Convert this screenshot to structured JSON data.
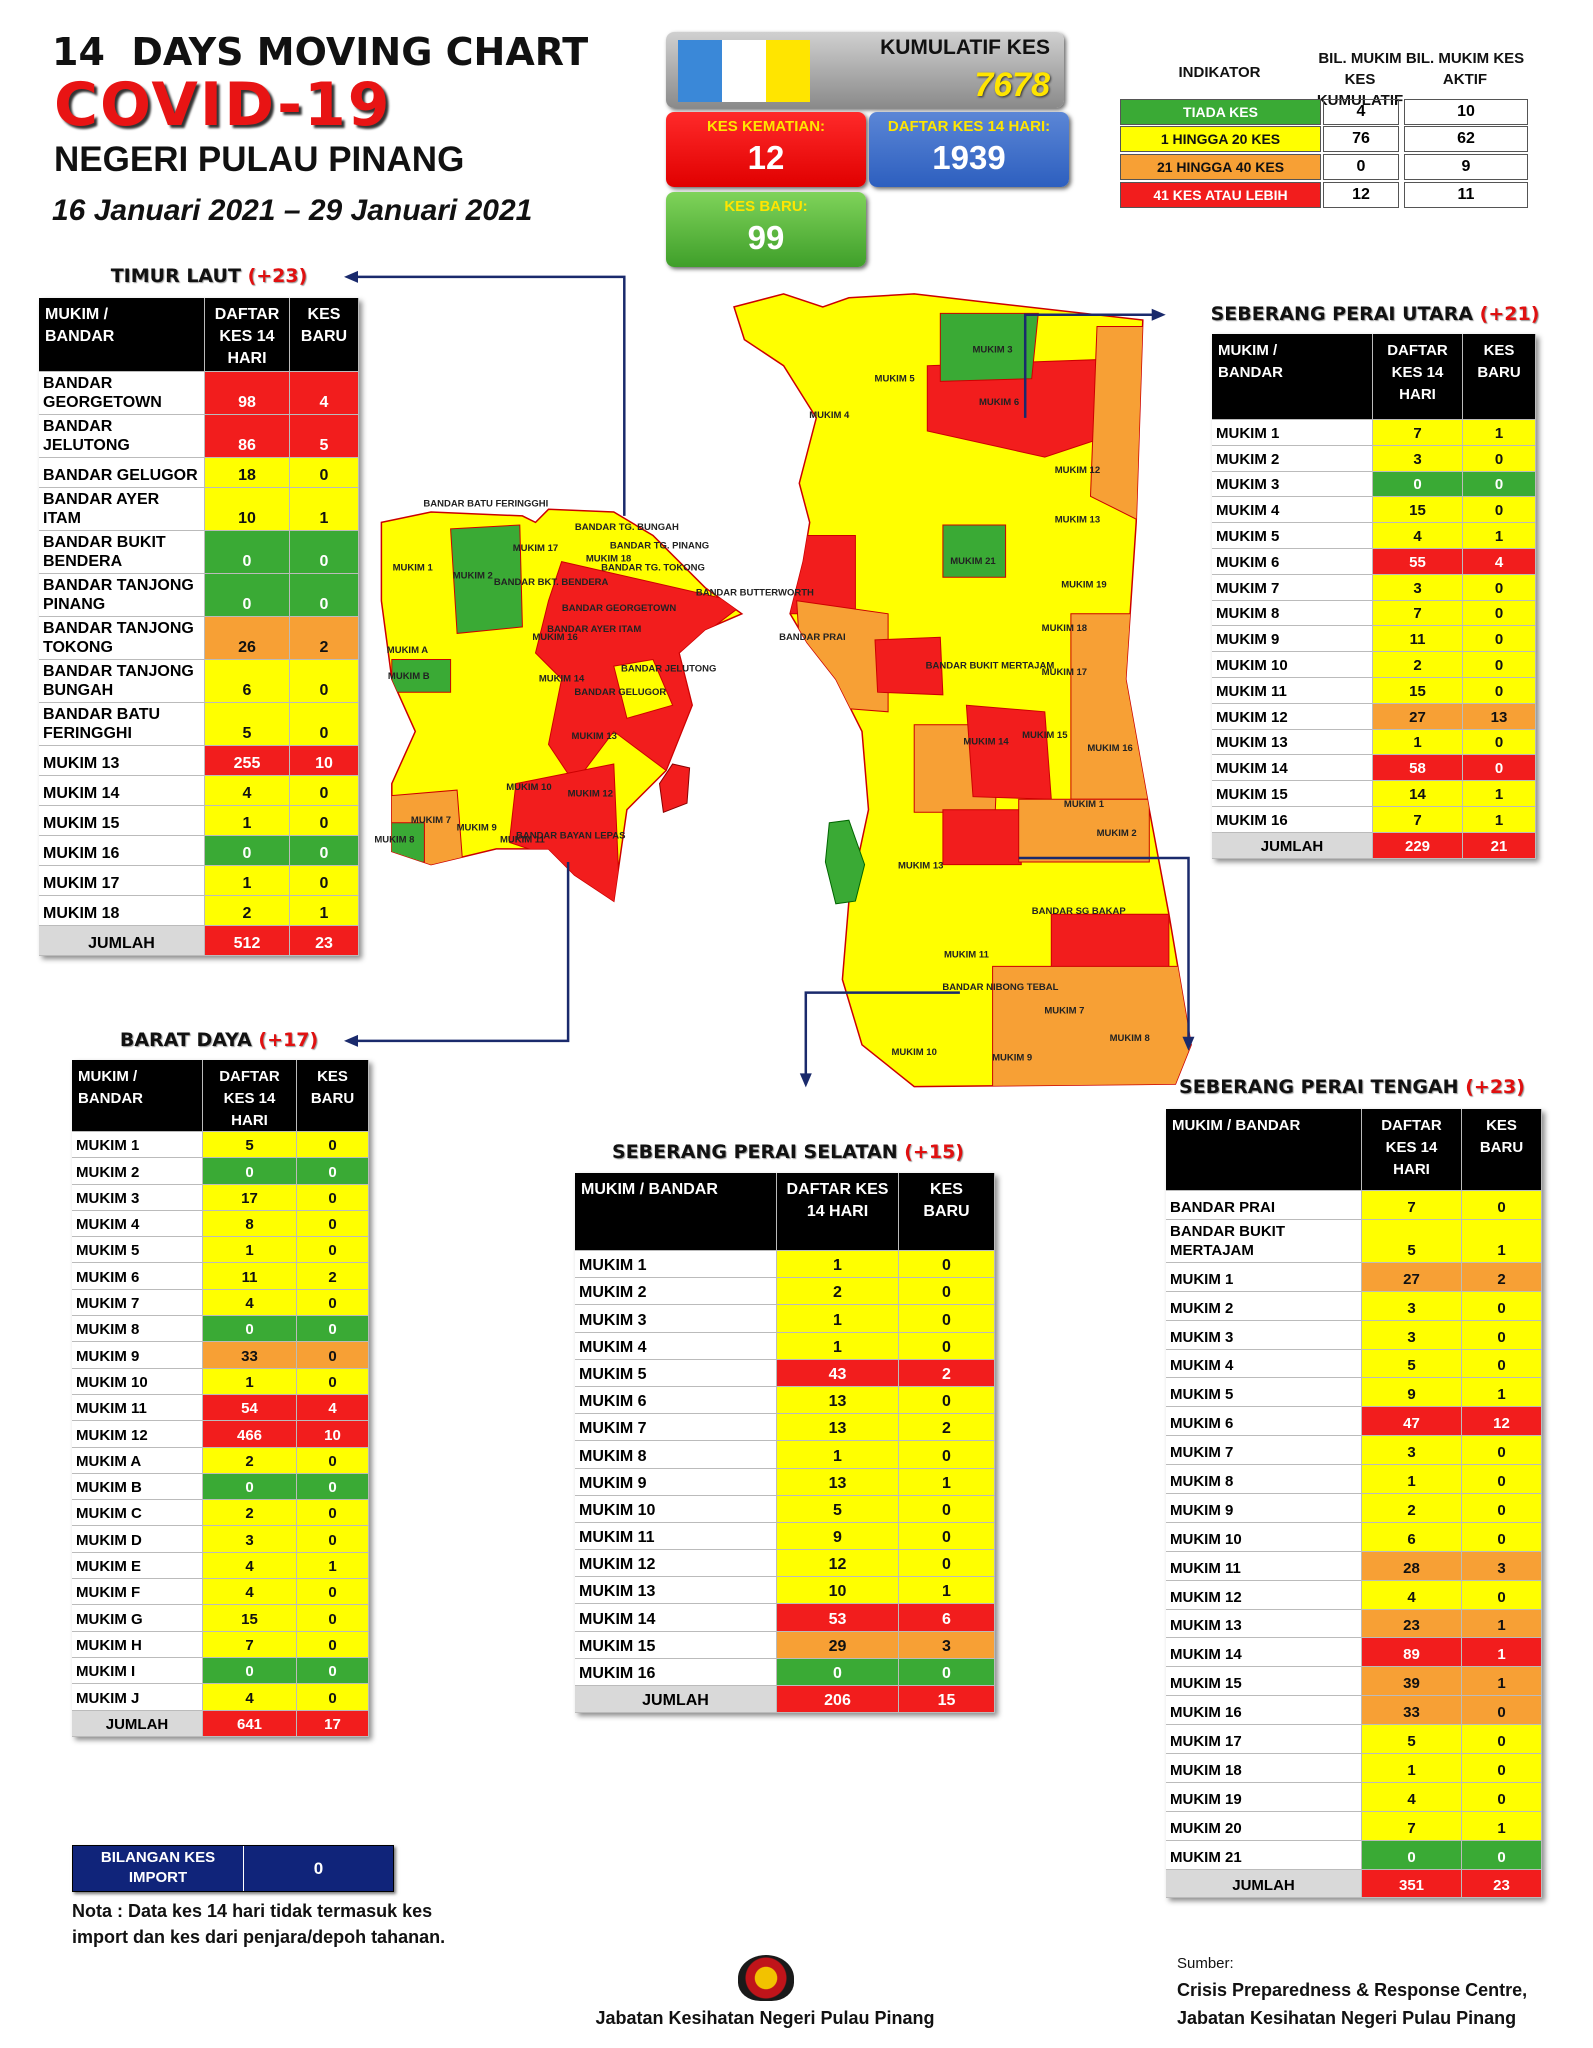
{
  "header": {
    "line1": "14  DAYS MOVING CHART",
    "title": "COVID-19",
    "state": "NEGERI PULAU PINANG",
    "period": "16 Januari 2021 – 29 Januari 2021"
  },
  "summary": {
    "cumulative": {
      "label": "KUMULATIF KES",
      "value": 7678
    },
    "deaths": {
      "label": "KES KEMATIAN:",
      "value": 12
    },
    "active14": {
      "label": "DAFTAR KES 14 HARI:",
      "value": 1939
    },
    "new": {
      "label": "KES BARU:",
      "value": 99
    }
  },
  "indicator": {
    "headers": [
      "INDIKATOR",
      "BIL. MUKIM KES KUMULATIF",
      "BIL. MUKIM KES AKTIF"
    ],
    "rows": [
      {
        "label": "TIADA KES",
        "color": "#3aaa35",
        "cumulative": 4,
        "active": 10
      },
      {
        "label": "1 HINGGA 20 KES",
        "color": "#ffff00",
        "cumulative": 76,
        "active": 62
      },
      {
        "label": "21 HINGGA 40 KES",
        "color": "#f7a035",
        "cumulative": 0,
        "active": 9
      },
      {
        "label": "41 KES ATAU LEBIH",
        "color": "#f21d1d",
        "cumulative": 12,
        "active": 11
      }
    ]
  },
  "tables": [
    {
      "title": "TIMUR LAUT",
      "change": "(+23)",
      "headers": [
        "MUKIM / BANDAR",
        "DAFTAR KES 14 HARI",
        "KES BARU"
      ],
      "rows": [
        {
          "name": "BANDAR GEORGETOWN",
          "daftar": 98,
          "baru": 4,
          "color": "#f21d1d"
        },
        {
          "name": "BANDAR JELUTONG",
          "daftar": 86,
          "baru": 5,
          "color": "#f21d1d"
        },
        {
          "name": "BANDAR GELUGOR",
          "daftar": 18,
          "baru": 0,
          "color": "#ffff00"
        },
        {
          "name": "BANDAR AYER ITAM",
          "daftar": 10,
          "baru": 1,
          "color": "#ffff00"
        },
        {
          "name": "BANDAR BUKIT BENDERA",
          "daftar": 0,
          "baru": 0,
          "color": "#3aaa35"
        },
        {
          "name": "BANDAR TANJONG PINANG",
          "daftar": 0,
          "baru": 0,
          "color": "#3aaa35"
        },
        {
          "name": "BANDAR TANJONG TOKONG",
          "daftar": 26,
          "baru": 2,
          "color": "#f7a035"
        },
        {
          "name": "BANDAR TANJONG BUNGAH",
          "daftar": 6,
          "baru": 0,
          "color": "#ffff00"
        },
        {
          "name": "BANDAR BATU FERINGGHI",
          "daftar": 5,
          "baru": 0,
          "color": "#ffff00"
        },
        {
          "name": "MUKIM 13",
          "daftar": 255,
          "baru": 10,
          "color": "#f21d1d"
        },
        {
          "name": "MUKIM 14",
          "daftar": 4,
          "baru": 0,
          "color": "#ffff00"
        },
        {
          "name": "MUKIM 15",
          "daftar": 1,
          "baru": 0,
          "color": "#ffff00"
        },
        {
          "name": "MUKIM 16",
          "daftar": 0,
          "baru": 0,
          "color": "#3aaa35"
        },
        {
          "name": "MUKIM 17",
          "daftar": 1,
          "baru": 0,
          "color": "#ffff00"
        },
        {
          "name": "MUKIM 18",
          "daftar": 2,
          "baru": 1,
          "color": "#ffff00"
        }
      ],
      "total": {
        "name": "JUMLAH",
        "daftar": 512,
        "baru": 23,
        "color": "#f21d1d"
      }
    },
    {
      "title": "BARAT DAYA",
      "change": "(+17)",
      "headers": [
        "MUKIM / BANDAR",
        "DAFTAR KES 14 HARI",
        "KES BARU"
      ],
      "rows": [
        {
          "name": "MUKIM 1",
          "daftar": 5,
          "baru": 0,
          "color": "#ffff00"
        },
        {
          "name": "MUKIM 2",
          "daftar": 0,
          "baru": 0,
          "color": "#3aaa35"
        },
        {
          "name": "MUKIM 3",
          "daftar": 17,
          "baru": 0,
          "color": "#ffff00"
        },
        {
          "name": "MUKIM 4",
          "daftar": 8,
          "baru": 0,
          "color": "#ffff00"
        },
        {
          "name": "MUKIM 5",
          "daftar": 1,
          "baru": 0,
          "color": "#ffff00"
        },
        {
          "name": "MUKIM 6",
          "daftar": 11,
          "baru": 2,
          "color": "#ffff00"
        },
        {
          "name": "MUKIM 7",
          "daftar": 4,
          "baru": 0,
          "color": "#ffff00"
        },
        {
          "name": "MUKIM 8",
          "daftar": 0,
          "baru": 0,
          "color": "#3aaa35"
        },
        {
          "name": "MUKIM 9",
          "daftar": 33,
          "baru": 0,
          "color": "#f7a035"
        },
        {
          "name": "MUKIM 10",
          "daftar": 1,
          "baru": 0,
          "color": "#ffff00"
        },
        {
          "name": "MUKIM 11",
          "daftar": 54,
          "baru": 4,
          "color": "#f21d1d"
        },
        {
          "name": "MUKIM 12",
          "daftar": 466,
          "baru": 10,
          "color": "#f21d1d"
        },
        {
          "name": "MUKIM A",
          "daftar": 2,
          "baru": 0,
          "color": "#ffff00"
        },
        {
          "name": "MUKIM B",
          "daftar": 0,
          "baru": 0,
          "color": "#3aaa35"
        },
        {
          "name": "MUKIM C",
          "daftar": 2,
          "baru": 0,
          "color": "#ffff00"
        },
        {
          "name": "MUKIM D",
          "daftar": 3,
          "baru": 0,
          "color": "#ffff00"
        },
        {
          "name": "MUKIM E",
          "daftar": 4,
          "baru": 1,
          "color": "#ffff00"
        },
        {
          "name": "MUKIM F",
          "daftar": 4,
          "baru": 0,
          "color": "#ffff00"
        },
        {
          "name": "MUKIM G",
          "daftar": 15,
          "baru": 0,
          "color": "#ffff00"
        },
        {
          "name": "MUKIM H",
          "daftar": 7,
          "baru": 0,
          "color": "#ffff00"
        },
        {
          "name": "MUKIM I",
          "daftar": 0,
          "baru": 0,
          "color": "#3aaa35"
        },
        {
          "name": "MUKIM J",
          "daftar": 4,
          "baru": 0,
          "color": "#ffff00"
        }
      ],
      "total": {
        "name": "JUMLAH",
        "daftar": 641,
        "baru": 17,
        "color": "#f21d1d"
      }
    },
    {
      "title": "SEBERANG PERAI SELATAN",
      "change": "(+15)",
      "headers": [
        "MUKIM / BANDAR",
        "DAFTAR KES 14 HARI",
        "KES BARU"
      ],
      "rows": [
        {
          "name": "MUKIM 1",
          "daftar": 1,
          "baru": 0,
          "color": "#ffff00"
        },
        {
          "name": "MUKIM 2",
          "daftar": 2,
          "baru": 0,
          "color": "#ffff00"
        },
        {
          "name": "MUKIM 3",
          "daftar": 1,
          "baru": 0,
          "color": "#ffff00"
        },
        {
          "name": "MUKIM 4",
          "daftar": 1,
          "baru": 0,
          "color": "#ffff00"
        },
        {
          "name": "MUKIM 5",
          "daftar": 43,
          "baru": 2,
          "color": "#f21d1d"
        },
        {
          "name": "MUKIM 6",
          "daftar": 13,
          "baru": 0,
          "color": "#ffff00"
        },
        {
          "name": "MUKIM 7",
          "daftar": 13,
          "baru": 2,
          "color": "#ffff00"
        },
        {
          "name": "MUKIM 8",
          "daftar": 1,
          "baru": 0,
          "color": "#ffff00"
        },
        {
          "name": "MUKIM 9",
          "daftar": 13,
          "baru": 1,
          "color": "#ffff00"
        },
        {
          "name": "MUKIM 10",
          "daftar": 5,
          "baru": 0,
          "color": "#ffff00"
        },
        {
          "name": "MUKIM 11",
          "daftar": 9,
          "baru": 0,
          "color": "#ffff00"
        },
        {
          "name": "MUKIM 12",
          "daftar": 12,
          "baru": 0,
          "color": "#ffff00"
        },
        {
          "name": "MUKIM 13",
          "daftar": 10,
          "baru": 1,
          "color": "#ffff00"
        },
        {
          "name": "MUKIM 14",
          "daftar": 53,
          "baru": 6,
          "color": "#f21d1d"
        },
        {
          "name": "MUKIM 15",
          "daftar": 29,
          "baru": 3,
          "color": "#f7a035"
        },
        {
          "name": "MUKIM 16",
          "daftar": 0,
          "baru": 0,
          "color": "#3aaa35"
        }
      ],
      "total": {
        "name": "JUMLAH",
        "daftar": 206,
        "baru": 15,
        "color": "#f21d1d"
      }
    },
    {
      "title": "SEBERANG PERAI UTARA",
      "change": "(+21)",
      "headers": [
        "MUKIM / BANDAR",
        "DAFTAR KES 14 HARI",
        "KES BARU"
      ],
      "rows": [
        {
          "name": "MUKIM 1",
          "daftar": 7,
          "baru": 1,
          "color": "#ffff00"
        },
        {
          "name": "MUKIM 2",
          "daftar": 3,
          "baru": 0,
          "color": "#ffff00"
        },
        {
          "name": "MUKIM 3",
          "daftar": 0,
          "baru": 0,
          "color": "#3aaa35"
        },
        {
          "name": "MUKIM 4",
          "daftar": 15,
          "baru": 0,
          "color": "#ffff00"
        },
        {
          "name": "MUKIM 5",
          "daftar": 4,
          "baru": 1,
          "color": "#ffff00"
        },
        {
          "name": "MUKIM 6",
          "daftar": 55,
          "baru": 4,
          "color": "#f21d1d"
        },
        {
          "name": "MUKIM 7",
          "daftar": 3,
          "baru": 0,
          "color": "#ffff00"
        },
        {
          "name": "MUKIM 8",
          "daftar": 7,
          "baru": 0,
          "color": "#ffff00"
        },
        {
          "name": "MUKIM 9",
          "daftar": 11,
          "baru": 0,
          "color": "#ffff00"
        },
        {
          "name": "MUKIM 10",
          "daftar": 2,
          "baru": 0,
          "color": "#ffff00"
        },
        {
          "name": "MUKIM 11",
          "daftar": 15,
          "baru": 0,
          "color": "#ffff00"
        },
        {
          "name": "MUKIM 12",
          "daftar": 27,
          "baru": 13,
          "color": "#f7a035"
        },
        {
          "name": "MUKIM 13",
          "daftar": 1,
          "baru": 0,
          "color": "#ffff00"
        },
        {
          "name": "MUKIM 14",
          "daftar": 58,
          "baru": 0,
          "color": "#f21d1d"
        },
        {
          "name": "MUKIM 15",
          "daftar": 14,
          "baru": 1,
          "color": "#ffff00"
        },
        {
          "name": "MUKIM 16",
          "daftar": 7,
          "baru": 1,
          "color": "#ffff00"
        }
      ],
      "total": {
        "name": "JUMLAH",
        "daftar": 229,
        "baru": 21,
        "color": "#f21d1d"
      }
    },
    {
      "title": "SEBERANG PERAI TENGAH",
      "change": "(+23)",
      "headers": [
        "MUKIM / BANDAR",
        "DAFTAR KES 14 HARI",
        "KES BARU"
      ],
      "rows": [
        {
          "name": "BANDAR PRAI",
          "daftar": 7,
          "baru": 0,
          "color": "#ffff00"
        },
        {
          "name": "BANDAR BUKIT MERTAJAM",
          "daftar": 5,
          "baru": 1,
          "color": "#ffff00"
        },
        {
          "name": "MUKIM 1",
          "daftar": 27,
          "baru": 2,
          "color": "#f7a035"
        },
        {
          "name": "MUKIM 2",
          "daftar": 3,
          "baru": 0,
          "color": "#ffff00"
        },
        {
          "name": "MUKIM 3",
          "daftar": 3,
          "baru": 0,
          "color": "#ffff00"
        },
        {
          "name": "MUKIM 4",
          "daftar": 5,
          "baru": 0,
          "color": "#ffff00"
        },
        {
          "name": "MUKIM 5",
          "daftar": 9,
          "baru": 1,
          "color": "#ffff00"
        },
        {
          "name": "MUKIM 6",
          "daftar": 47,
          "baru": 12,
          "color": "#f21d1d"
        },
        {
          "name": "MUKIM 7",
          "daftar": 3,
          "baru": 0,
          "color": "#ffff00"
        },
        {
          "name": "MUKIM 8",
          "daftar": 1,
          "baru": 0,
          "color": "#ffff00"
        },
        {
          "name": "MUKIM 9",
          "daftar": 2,
          "baru": 0,
          "color": "#ffff00"
        },
        {
          "name": "MUKIM 10",
          "daftar": 6,
          "baru": 0,
          "color": "#ffff00"
        },
        {
          "name": "MUKIM 11",
          "daftar": 28,
          "baru": 3,
          "color": "#f7a035"
        },
        {
          "name": "MUKIM 12",
          "daftar": 4,
          "baru": 0,
          "color": "#ffff00"
        },
        {
          "name": "MUKIM 13",
          "daftar": 23,
          "baru": 1,
          "color": "#f7a035"
        },
        {
          "name": "MUKIM 14",
          "daftar": 89,
          "baru": 1,
          "color": "#f21d1d"
        },
        {
          "name": "MUKIM 15",
          "daftar": 39,
          "baru": 1,
          "color": "#f7a035"
        },
        {
          "name": "MUKIM 16",
          "daftar": 33,
          "baru": 0,
          "color": "#f7a035"
        },
        {
          "name": "MUKIM 17",
          "daftar": 5,
          "baru": 0,
          "color": "#ffff00"
        },
        {
          "name": "MUKIM 18",
          "daftar": 1,
          "baru": 0,
          "color": "#ffff00"
        },
        {
          "name": "MUKIM 19",
          "daftar": 4,
          "baru": 0,
          "color": "#ffff00"
        },
        {
          "name": "MUKIM 20",
          "daftar": 7,
          "baru": 1,
          "color": "#ffff00"
        },
        {
          "name": "MUKIM 21",
          "daftar": 0,
          "baru": 0,
          "color": "#3aaa35"
        }
      ],
      "total": {
        "name": "JUMLAH",
        "daftar": 351,
        "baru": 23,
        "color": "#f21d1d"
      }
    }
  ],
  "map": {
    "labels": [
      "BANDAR BATU FERINGGHI",
      "BANDAR TG. BUNGAH",
      "BANDAR TG. PINANG",
      "BANDAR TG. TOKONG",
      "BANDAR BKT. BENDERA",
      "BANDAR GEORGETOWN",
      "BANDAR AYER ITAM",
      "BANDAR JELUTONG",
      "BANDAR GELUGOR",
      "BANDAR BAYAN LEPAS",
      "MUKIM 1",
      "MUKIM 2",
      "MUKIM 17",
      "MUKIM 18",
      "MUKIM 16",
      "MUKIM 14",
      "MUKIM 13",
      "MUKIM 12",
      "MUKIM 11",
      "MUKIM 10",
      "MUKIM 9",
      "MUKIM 8",
      "MUKIM 7",
      "MUKIM A",
      "MUKIM B",
      "BANDAR BUTTERWORTH",
      "BANDAR PRAI",
      "BANDAR BUKIT MERTAJAM",
      "BANDAR SG BAKAP",
      "BANDAR NIBONG TEBAL",
      "MUKIM 3",
      "MUKIM 6",
      "MUKIM 12",
      "MUKIM 13",
      "MUKIM 21",
      "MUKIM 19",
      "MUKIM 18",
      "MUKIM 17",
      "MUKIM 14",
      "MUKIM 15",
      "MUKIM 16",
      "MUKIM 1",
      "MUKIM 2",
      "MUKIM 13",
      "MUKIM 11",
      "MUKIM 7",
      "MUKIM 8",
      "MUKIM 9",
      "MUKIM 10",
      "MUKIM 4",
      "MUKIM 5"
    ]
  },
  "import": {
    "label": "BILANGAN KES IMPORT",
    "value": 0
  },
  "note": "Nota : Data kes 14 hari tidak termasuk kes import dan kes dari penjara/depoh tahanan.",
  "footer": {
    "agency": "Jabatan Kesihatan Negeri Pulau Pinang",
    "source_label": "Sumber:",
    "source_lines": [
      "Crisis Preparedness & Response Centre,",
      "Jabatan Kesihatan Negeri Pulau Pinang"
    ]
  }
}
